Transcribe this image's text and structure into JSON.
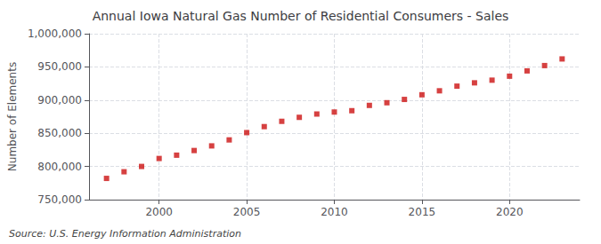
{
  "chart_data": {
    "type": "scatter",
    "title": "Annual Iowa Natural Gas Number of Residential Consumers - Sales",
    "ylabel": "Number of Elements",
    "annotation": "Source: U.S. Energy Information Administration",
    "x": [
      1997,
      1998,
      1999,
      2000,
      2001,
      2002,
      2003,
      2004,
      2005,
      2006,
      2007,
      2008,
      2009,
      2010,
      2011,
      2012,
      2013,
      2014,
      2015,
      2016,
      2017,
      2018,
      2019,
      2020,
      2021,
      2022,
      2023
    ],
    "values": [
      782000,
      792000,
      800000,
      812000,
      817000,
      824000,
      831000,
      840000,
      851000,
      860000,
      868000,
      874000,
      879000,
      882000,
      884000,
      892000,
      896000,
      901000,
      908000,
      914000,
      921000,
      926000,
      930000,
      936000,
      944000,
      952000,
      962000
    ],
    "color": "#cc1111",
    "marker": "square",
    "xlim": [
      1996,
      2024
    ],
    "xticks": [
      2000,
      2005,
      2010,
      2015,
      2020
    ],
    "ylim": [
      750000,
      1000000
    ],
    "yticks": [
      {
        "value": 750000,
        "label": "750,000"
      },
      {
        "value": 800000,
        "label": "800,000"
      },
      {
        "value": 850000,
        "label": "850,000"
      },
      {
        "value": 900000,
        "label": "900,000"
      },
      {
        "value": 950000,
        "label": "950,000"
      },
      {
        "value": 1000000,
        "label": "1,000,000"
      }
    ],
    "grid": true
  }
}
